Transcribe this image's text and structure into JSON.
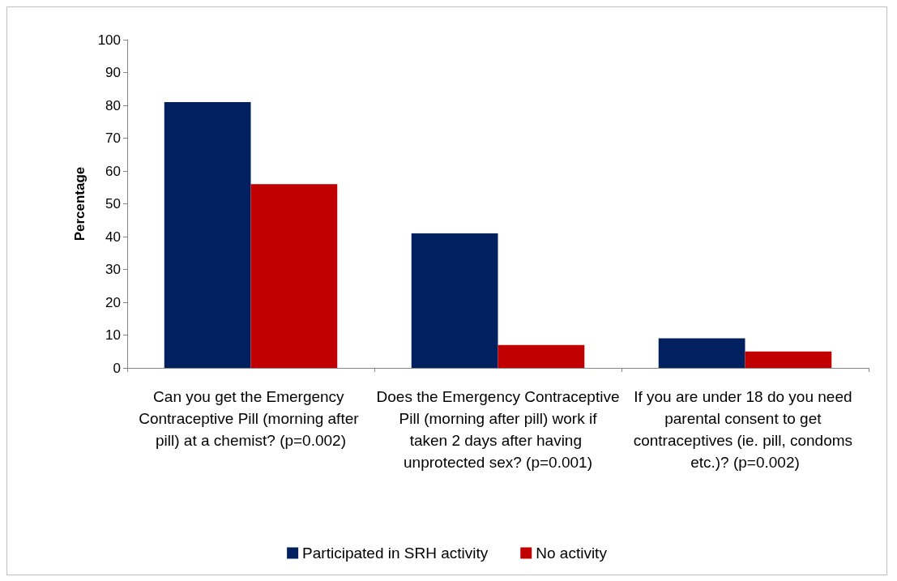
{
  "chart_data": {
    "type": "bar",
    "ylabel": "Percentage",
    "categories": [
      "Can you get the Emergency Contraceptive Pill (morning after pill) at a chemist? (p=0.002)",
      "Does the Emergency Contraceptive Pill (morning after pill) work if taken 2 days after having unprotected sex? (p=0.001)",
      "If you are under 18 do you need parental consent to get contraceptives (ie. pill, condoms etc.)? (p=0.002)"
    ],
    "series": [
      {
        "name": "Participated in SRH activity",
        "color": "#002060",
        "values": [
          81,
          41,
          9
        ]
      },
      {
        "name": "No activity",
        "color": "#c00000",
        "values": [
          56,
          7,
          5
        ]
      }
    ],
    "ylim": [
      0,
      100
    ],
    "yticks": [
      0,
      10,
      20,
      30,
      40,
      50,
      60,
      70,
      80,
      90,
      100
    ],
    "grid": false,
    "legend": "bottom"
  }
}
